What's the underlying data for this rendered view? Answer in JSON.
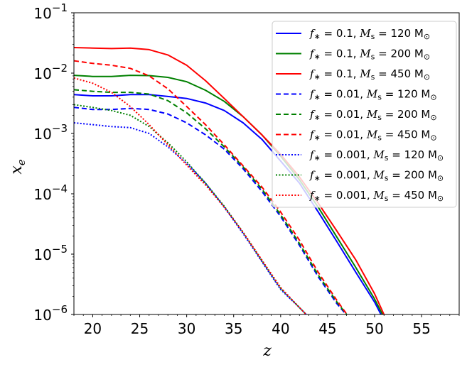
{
  "chart_data": {
    "type": "line",
    "title": "",
    "xlabel": "z",
    "ylabel": "x_e",
    "xlim": [
      18,
      59
    ],
    "ylim": [
      1e-06,
      0.1
    ],
    "yscale": "log",
    "x_ticks": [
      20,
      25,
      30,
      35,
      40,
      45,
      50,
      55
    ],
    "x_tick_labels": [
      "20",
      "25",
      "30",
      "35",
      "40",
      "45",
      "50",
      "55"
    ],
    "y_ticks": [
      {
        "value": 1e-06,
        "base": "10",
        "exp": "−6"
      },
      {
        "value": 1e-05,
        "base": "10",
        "exp": "−5"
      },
      {
        "value": 0.0001,
        "base": "10",
        "exp": "−4"
      },
      {
        "value": 0.001,
        "base": "10",
        "exp": "−3"
      },
      {
        "value": 0.01,
        "base": "10",
        "exp": "−2"
      },
      {
        "value": 0.1,
        "base": "10",
        "exp": "−1"
      }
    ],
    "grid": false,
    "legend_position": "top-right",
    "series": [
      {
        "name": "f* = 0.1, Ms = 120 M⊙",
        "f_star": "0.1",
        "mass": "120",
        "color": "#0000ff",
        "style": "solid",
        "x": [
          18,
          20,
          22,
          24,
          26,
          28,
          30,
          32,
          34,
          36,
          38,
          40,
          42,
          44,
          46,
          48,
          50,
          51
        ],
        "y": [
          0.0044,
          0.0042,
          0.0042,
          0.0044,
          0.0044,
          0.0041,
          0.0038,
          0.0032,
          0.0024,
          0.0015,
          0.0008,
          0.00035,
          0.00015,
          5e-05,
          1.6e-05,
          5e-06,
          1.6e-06,
          8e-07
        ]
      },
      {
        "name": "f* = 0.1, Ms = 200 M⊙",
        "f_star": "0.1",
        "mass": "200",
        "color": "#008000",
        "style": "solid",
        "x": [
          18,
          20,
          22,
          24,
          26,
          28,
          30,
          32,
          34,
          36,
          38,
          40,
          42,
          44,
          46,
          48,
          50,
          51
        ],
        "y": [
          0.0092,
          0.0088,
          0.0088,
          0.0092,
          0.0091,
          0.0085,
          0.0072,
          0.0052,
          0.0034,
          0.0019,
          0.00095,
          0.00042,
          0.00017,
          6e-05,
          1.9e-05,
          6e-06,
          1.8e-06,
          9e-07
        ]
      },
      {
        "name": "f* = 0.1, Ms = 450 M⊙",
        "f_star": "0.1",
        "mass": "450",
        "color": "#ff0000",
        "style": "solid",
        "x": [
          18,
          20,
          22,
          24,
          26,
          28,
          30,
          32,
          34,
          36,
          38,
          40,
          42,
          44,
          46,
          48,
          50,
          51
        ],
        "y": [
          0.0265,
          0.026,
          0.0255,
          0.026,
          0.0245,
          0.02,
          0.0135,
          0.0075,
          0.0038,
          0.0019,
          0.00095,
          0.00045,
          0.00019,
          7e-05,
          2.4e-05,
          8e-06,
          2.2e-06,
          1e-06
        ]
      },
      {
        "name": "f* = 0.01, Ms = 120 M⊙",
        "f_star": "0.01",
        "mass": "120",
        "color": "#0000ff",
        "style": "dashed",
        "x": [
          18,
          20,
          22,
          24,
          26,
          28,
          30,
          32,
          34,
          36,
          38,
          40,
          42,
          44,
          46,
          47.5
        ],
        "y": [
          0.0027,
          0.0025,
          0.0025,
          0.0026,
          0.0025,
          0.0021,
          0.0015,
          0.00095,
          0.00055,
          0.00026,
          0.00011,
          4.2e-05,
          1.4e-05,
          4.2e-06,
          1.5e-06,
          8e-07
        ]
      },
      {
        "name": "f* = 0.01, Ms = 200 M⊙",
        "f_star": "0.01",
        "mass": "200",
        "color": "#008000",
        "style": "dashed",
        "x": [
          18,
          20,
          22,
          24,
          26,
          28,
          30,
          32,
          34,
          36,
          38,
          40,
          42,
          44,
          46,
          47.5
        ],
        "y": [
          0.0053,
          0.005,
          0.0048,
          0.0048,
          0.0045,
          0.0035,
          0.0022,
          0.0012,
          0.0006,
          0.00028,
          0.00012,
          4.5e-05,
          1.5e-05,
          4.5e-06,
          1.6e-06,
          8e-07
        ]
      },
      {
        "name": "f* = 0.01, Ms = 450 M⊙",
        "f_star": "0.01",
        "mass": "450",
        "color": "#ff0000",
        "style": "dashed",
        "x": [
          18,
          20,
          22,
          24,
          26,
          28,
          30,
          32,
          34,
          36,
          38,
          40,
          42,
          44,
          46,
          47.5
        ],
        "y": [
          0.016,
          0.0145,
          0.0135,
          0.012,
          0.009,
          0.0055,
          0.0028,
          0.0014,
          0.00065,
          0.00029,
          0.00013,
          5e-05,
          1.7e-05,
          5e-06,
          1.7e-06,
          8e-07
        ]
      },
      {
        "name": "f* = 0.001, Ms = 120 M⊙",
        "f_star": "0.001",
        "mass": "120",
        "color": "#0000ff",
        "style": "dotted",
        "x": [
          18,
          20,
          22,
          24,
          26,
          28,
          30,
          32,
          34,
          36,
          38,
          40,
          42,
          43
        ],
        "y": [
          0.0015,
          0.0014,
          0.0013,
          0.00125,
          0.001,
          0.0006,
          0.00032,
          0.00015,
          6e-05,
          2.2e-05,
          7.5e-06,
          2.6e-06,
          1.3e-06,
          9e-07
        ]
      },
      {
        "name": "f* = 0.001, Ms = 200 M⊙",
        "f_star": "0.001",
        "mass": "200",
        "color": "#008000",
        "style": "dotted",
        "x": [
          18,
          20,
          22,
          24,
          26,
          28,
          30,
          32,
          34,
          36,
          38,
          40,
          42,
          43
        ],
        "y": [
          0.003,
          0.0027,
          0.0024,
          0.002,
          0.0013,
          0.0007,
          0.00034,
          0.00015,
          6.2e-05,
          2.3e-05,
          7.8e-06,
          2.7e-06,
          1.3e-06,
          9e-07
        ]
      },
      {
        "name": "f* = 0.001, Ms = 450 M⊙",
        "f_star": "0.001",
        "mass": "450",
        "color": "#ff0000",
        "style": "dotted",
        "x": [
          18,
          20,
          22,
          24,
          26,
          28,
          30,
          32,
          34,
          36,
          38,
          40,
          42,
          43
        ],
        "y": [
          0.0083,
          0.0068,
          0.0048,
          0.0028,
          0.0014,
          0.00065,
          0.0003,
          0.00014,
          6e-05,
          2.3e-05,
          8e-06,
          2.8e-06,
          1.3e-06,
          9e-07
        ]
      }
    ]
  }
}
